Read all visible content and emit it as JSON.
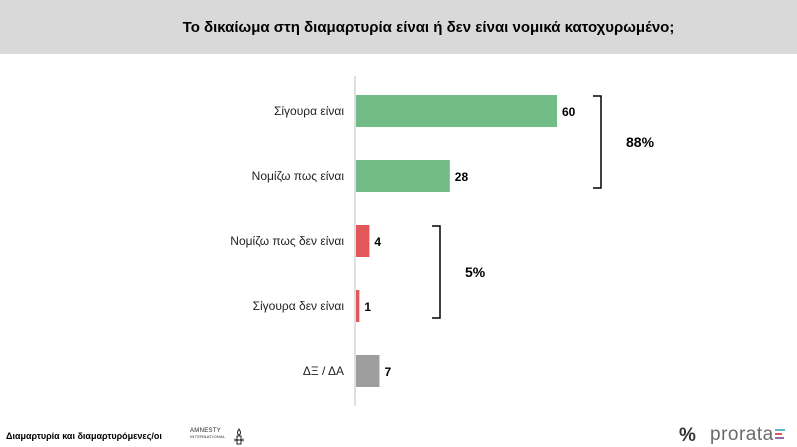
{
  "title": "Το δικαίωμα στη διαμαρτυρία είναι ή δεν είναι νομικά κατοχυρωμένο;",
  "chart_data": {
    "type": "bar",
    "orientation": "horizontal",
    "categories": [
      "Σίγουρα είναι",
      "Νομίζω πως είναι",
      "Νομίζω πως δεν είναι",
      "Σίγουρα δεν είναι",
      "ΔΞ / ΔΑ"
    ],
    "values": [
      60,
      28,
      4,
      1,
      7
    ],
    "colors": [
      "#71bb87",
      "#71bb87",
      "#e3575b",
      "#e3575b",
      "#9e9e9e"
    ],
    "groups": [
      {
        "label": "88%",
        "from": 0,
        "to": 1
      },
      {
        "label": "5%",
        "from": 2,
        "to": 3
      }
    ],
    "grid": false,
    "legend": "none"
  },
  "footer": {
    "left_text": "Διαμαρτυρία και διαμαρτυρόμενες/οι",
    "amnesty_line1": "AMNESTY",
    "amnesty_line2": "INTERNATIONAL",
    "pct_symbol": "%",
    "brand": "prorata",
    "logo_icon": "candle-barbed-wire-icon"
  }
}
